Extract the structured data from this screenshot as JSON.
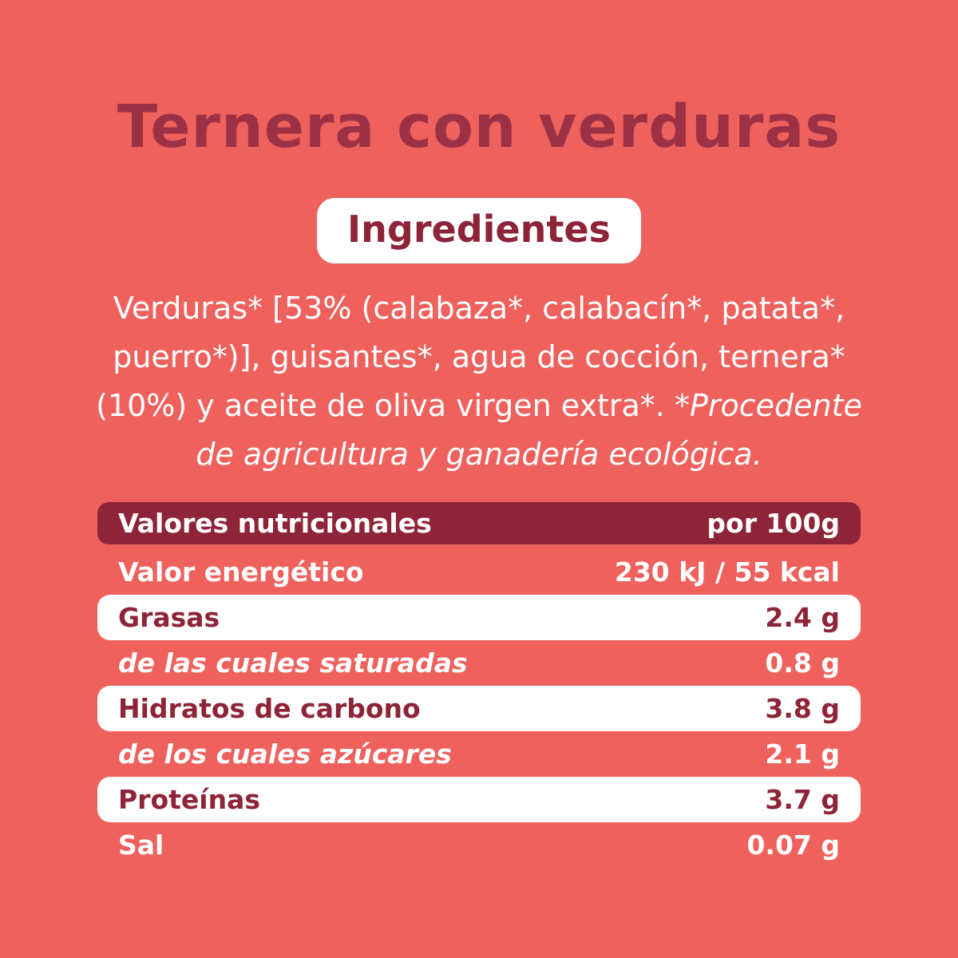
{
  "colors": {
    "background": "#EE615D",
    "title_maroon": "#9C3145",
    "dark_maroon": "#8E2437",
    "white": "#FFFFFF"
  },
  "title": "Ternera con verduras",
  "ingredients": {
    "badge_label": "Ingredientes",
    "text": "Verduras* [53% (calabaza*, calabacín*, patata*, puerro*)], guisantes*, agua de cocción, ternera* (10%) y aceite de oliva virgen extra*. ",
    "note_italic": "*Procedente de agricultura y ganadería ecológica."
  },
  "nutrition_table": {
    "header": {
      "label": "Valores nutricionales",
      "per": "por 100g"
    },
    "rows": [
      {
        "label": "Valor energético",
        "value": "230 kJ / 55 kcal"
      },
      {
        "label": "Grasas",
        "value": "2.4 g"
      },
      {
        "label": "de las cuales saturadas",
        "value": "0.8 g"
      },
      {
        "label": "Hidratos de carbono",
        "value": "3.8 g"
      },
      {
        "label": "de los cuales azúcares",
        "value": "2.1 g"
      },
      {
        "label": "Proteínas",
        "value": "3.7 g"
      },
      {
        "label": "Sal",
        "value": "0.07 g"
      }
    ]
  }
}
